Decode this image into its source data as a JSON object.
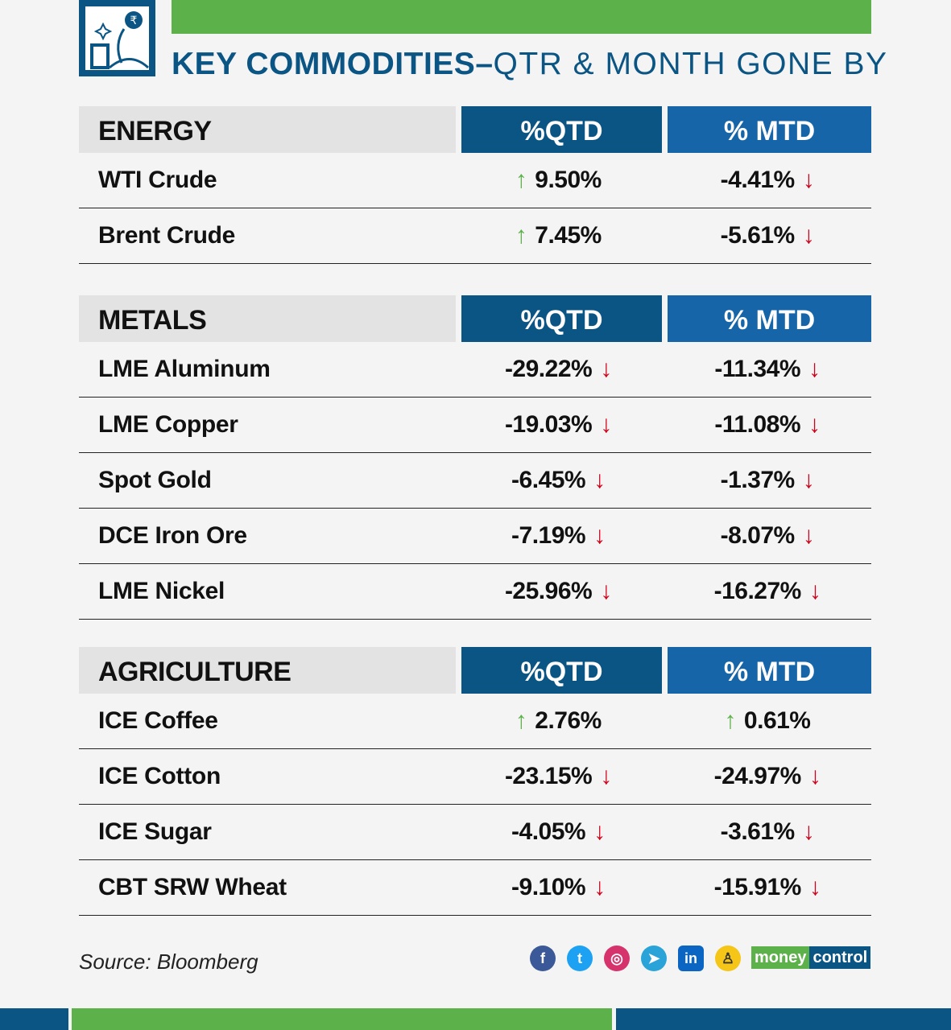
{
  "header": {
    "title_bold": "KEY COMMODITIES–",
    "title_light": "QTR & MONTH GONE BY"
  },
  "colors": {
    "brand_blue": "#0b5584",
    "mtd_blue": "#1565a8",
    "green": "#5db14a",
    "red": "#d0021b"
  },
  "chart_data": {
    "type": "table",
    "title": "KEY COMMODITIES–QTR & MONTH GONE BY",
    "columns": [
      "%QTD",
      "% MTD"
    ],
    "sections": [
      {
        "category": "ENERGY",
        "qtd_label": "%QTD",
        "mtd_label": "% MTD",
        "rows": [
          {
            "name": "WTI Crude",
            "qtd": "9.50%",
            "qtd_dir": "up",
            "mtd": "-4.41%",
            "mtd_dir": "down"
          },
          {
            "name": "Brent Crude",
            "qtd": "7.45%",
            "qtd_dir": "up",
            "mtd": "-5.61%",
            "mtd_dir": "down"
          }
        ]
      },
      {
        "category": "METALS",
        "qtd_label": "%QTD",
        "mtd_label": "% MTD",
        "rows": [
          {
            "name": "LME Aluminum",
            "qtd": "-29.22%",
            "qtd_dir": "down",
            "mtd": "-11.34%",
            "mtd_dir": "down"
          },
          {
            "name": "LME Copper",
            "qtd": "-19.03%",
            "qtd_dir": "down",
            "mtd": "-11.08%",
            "mtd_dir": "down"
          },
          {
            "name": "Spot Gold",
            "qtd": "-6.45%",
            "qtd_dir": "down",
            "mtd": "-1.37%",
            "mtd_dir": "down"
          },
          {
            "name": "DCE Iron Ore",
            "qtd": "-7.19%",
            "qtd_dir": "down",
            "mtd": "-8.07%",
            "mtd_dir": "down"
          },
          {
            "name": "LME Nickel",
            "qtd": "-25.96%",
            "qtd_dir": "down",
            "mtd": "-16.27%",
            "mtd_dir": "down"
          }
        ]
      },
      {
        "category": "AGRICULTURE",
        "qtd_label": "%QTD",
        "mtd_label": "% MTD",
        "rows": [
          {
            "name": "ICE Coffee",
            "qtd": "2.76%",
            "qtd_dir": "up",
            "mtd": "0.61%",
            "mtd_dir": "up"
          },
          {
            "name": "ICE Cotton",
            "qtd": "-23.15%",
            "qtd_dir": "down",
            "mtd": "-24.97%",
            "mtd_dir": "down"
          },
          {
            "name": "ICE Sugar",
            "qtd": "-4.05%",
            "qtd_dir": "down",
            "mtd": "-3.61%",
            "mtd_dir": "down"
          },
          {
            "name": "CBT SRW Wheat",
            "qtd": "-9.10%",
            "qtd_dir": "down",
            "mtd": "-15.91%",
            "mtd_dir": "down"
          }
        ]
      }
    ]
  },
  "footer": {
    "source": "Source: Bloomberg",
    "social_icons": [
      "facebook-icon",
      "twitter-icon",
      "instagram-icon",
      "telegram-icon",
      "linkedin-icon",
      "koo-icon"
    ],
    "brand_a": "money",
    "brand_b": "control"
  }
}
